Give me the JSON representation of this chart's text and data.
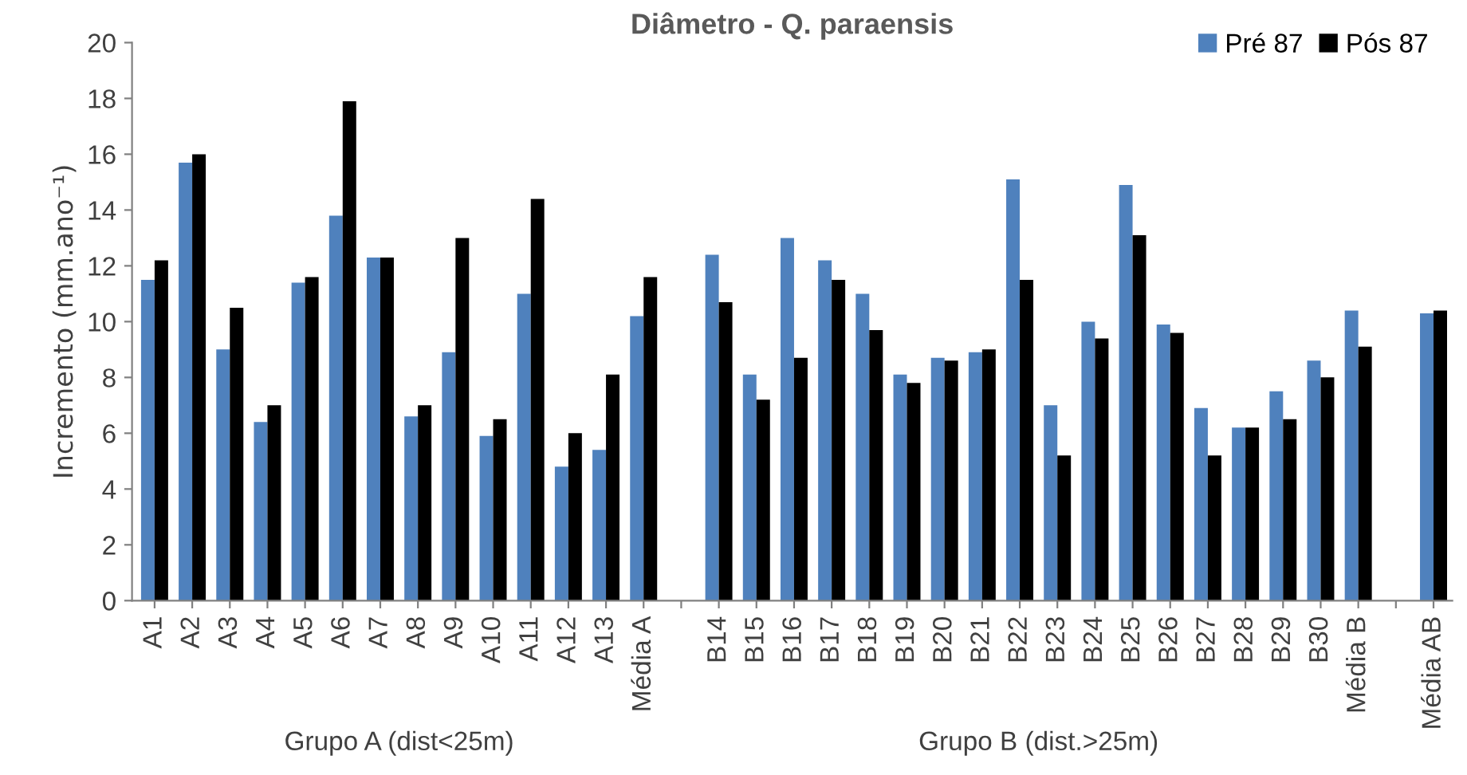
{
  "chart_data": {
    "type": "bar",
    "title": "Diâmetro - Q. paraensis",
    "ylabel": "Incremento (mm.ano⁻¹)",
    "categories": [
      "A1",
      "A2",
      "A3",
      "A4",
      "A5",
      "A6",
      "A7",
      "A8",
      "A9",
      "A10",
      "A11",
      "A12",
      "A13",
      "Média A",
      null,
      "B14",
      "B15",
      "B16",
      "B17",
      "B18",
      "B19",
      "B20",
      "B21",
      "B22",
      "B23",
      "B24",
      "B25",
      "B26",
      "B27",
      "B28",
      "B29",
      "B30",
      "Média B",
      null,
      "Média AB"
    ],
    "series": [
      {
        "name": "Pré 87",
        "color": "#4f81bd",
        "values": [
          11.5,
          15.7,
          9.0,
          6.4,
          11.4,
          13.8,
          12.3,
          6.6,
          8.9,
          5.9,
          11.0,
          4.8,
          5.4,
          10.2,
          null,
          12.4,
          8.1,
          13.0,
          12.2,
          11.0,
          8.1,
          8.7,
          8.9,
          15.1,
          7.0,
          10.0,
          14.9,
          9.9,
          6.9,
          6.2,
          7.5,
          8.6,
          10.4,
          null,
          10.3
        ]
      },
      {
        "name": "Pós 87",
        "color": "#000000",
        "values": [
          12.2,
          16.0,
          10.5,
          7.0,
          11.6,
          17.9,
          12.3,
          7.0,
          13.0,
          6.5,
          14.4,
          6.0,
          8.1,
          11.6,
          null,
          10.7,
          7.2,
          8.7,
          11.5,
          9.7,
          7.8,
          8.6,
          9.0,
          11.5,
          5.2,
          9.4,
          13.1,
          9.6,
          5.2,
          6.2,
          6.5,
          8.0,
          9.1,
          null,
          10.4
        ]
      }
    ],
    "annotations": [
      "Grupo A (dist<25m)",
      "Grupo B (dist.>25m)"
    ],
    "ylim": [
      0,
      20
    ],
    "yticks": [
      0,
      2,
      4,
      6,
      8,
      10,
      12,
      14,
      16,
      18,
      20
    ],
    "grid": false,
    "legend": "top right"
  }
}
